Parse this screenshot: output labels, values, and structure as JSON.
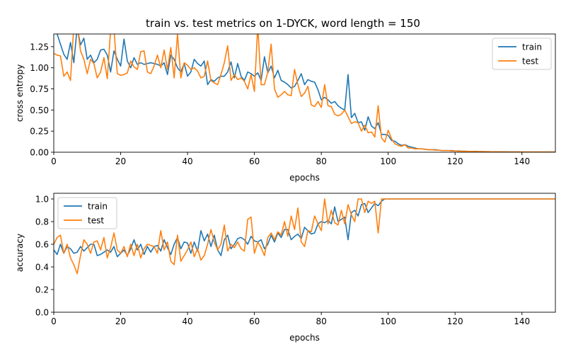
{
  "title": "train vs. test metrics on 1-DYCK, word length = 150",
  "colors": {
    "train": "#1f77b4",
    "test": "#ff7f0e"
  },
  "chart_data": [
    {
      "type": "line",
      "xlabel": "epochs",
      "ylabel": "cross entropy",
      "xlim": [
        0,
        150
      ],
      "ylim": [
        0,
        1.4
      ],
      "xticks": [
        "0",
        "20",
        "40",
        "60",
        "80",
        "100",
        "120",
        "140"
      ],
      "yticks": [
        "0.00",
        "0.25",
        "0.50",
        "0.75",
        "1.00",
        "1.25"
      ],
      "legend_position": "top-right",
      "series": [
        {
          "name": "train",
          "key": "train",
          "values": [
            1.55,
            1.4,
            1.28,
            1.16,
            1.1,
            1.3,
            1.06,
            1.48,
            1.27,
            1.35,
            1.1,
            1.15,
            1.06,
            1.1,
            1.21,
            1.22,
            1.15,
            0.95,
            1.2,
            1.1,
            1.02,
            1.34,
            1.08,
            1.0,
            1.12,
            1.04,
            1.06,
            1.04,
            1.05,
            1.06,
            1.05,
            1.04,
            1.02,
            1.06,
            0.92,
            1.15,
            1.1,
            1.0,
            0.95,
            1.05,
            0.9,
            0.95,
            1.1,
            1.05,
            1.02,
            1.08,
            0.8,
            0.86,
            0.84,
            0.88,
            0.9,
            0.9,
            0.95,
            1.07,
            0.88,
            1.05,
            0.9,
            0.85,
            0.95,
            0.93,
            0.9,
            0.94,
            0.85,
            1.13,
            0.94,
            1.02,
            0.88,
            0.97,
            0.85,
            0.83,
            0.8,
            0.76,
            0.78,
            0.85,
            0.93,
            0.8,
            0.86,
            0.84,
            0.83,
            0.74,
            0.62,
            0.65,
            0.62,
            0.58,
            0.6,
            0.55,
            0.52,
            0.5,
            0.92,
            0.41,
            0.46,
            0.35,
            0.36,
            0.26,
            0.42,
            0.31,
            0.28,
            0.35,
            0.21,
            0.21,
            0.2,
            0.14,
            0.13,
            0.1,
            0.08,
            0.09,
            0.07,
            0.06,
            0.05,
            0.04,
            0.04,
            0.035,
            0.03,
            0.03,
            0.03,
            0.025,
            0.02,
            0.02,
            0.02,
            0.02,
            0.015,
            0.015,
            0.012,
            0.012,
            0.01,
            0.01,
            0.01,
            0.008,
            0.008,
            0.007,
            0.007,
            0.006,
            0.006,
            0.005,
            0.005,
            0.005,
            0.004,
            0.004,
            0.004,
            0.004,
            0.003,
            0.003,
            0.003,
            0.003,
            0.003,
            0.003,
            0.003,
            0.003,
            0.003,
            0.003,
            0.003
          ]
        },
        {
          "name": "test",
          "key": "test",
          "values": [
            1.17,
            1.15,
            1.14,
            0.9,
            0.95,
            0.85,
            1.5,
            1.5,
            1.2,
            1.1,
            0.93,
            1.1,
            1.05,
            0.88,
            0.95,
            1.12,
            0.87,
            1.45,
            1.45,
            0.93,
            0.91,
            0.92,
            0.94,
            1.08,
            1.01,
            0.98,
            1.19,
            1.2,
            0.95,
            0.93,
            1.02,
            1.15,
            1.0,
            1.21,
            0.98,
            1.24,
            0.88,
            1.4,
            0.88,
            1.06,
            1.03,
            0.98,
            1.0,
            0.96,
            0.88,
            0.9,
            1.08,
            0.85,
            0.82,
            0.8,
            0.92,
            1.06,
            1.26,
            0.85,
            0.92,
            0.86,
            0.88,
            0.84,
            0.75,
            0.92,
            0.72,
            1.5,
            0.8,
            0.8,
            0.95,
            1.28,
            0.75,
            0.65,
            0.68,
            0.72,
            0.68,
            0.67,
            0.98,
            0.8,
            0.66,
            0.7,
            0.78,
            0.56,
            0.54,
            0.6,
            0.53,
            0.8,
            0.55,
            0.54,
            0.45,
            0.43,
            0.45,
            0.5,
            0.42,
            0.34,
            0.36,
            0.35,
            0.25,
            0.32,
            0.23,
            0.24,
            0.18,
            0.55,
            0.17,
            0.12,
            0.26,
            0.16,
            0.1,
            0.08,
            0.07,
            0.09,
            0.05,
            0.05,
            0.04,
            0.04,
            0.04,
            0.035,
            0.03,
            0.03,
            0.025,
            0.025,
            0.02,
            0.02,
            0.02,
            0.015,
            0.015,
            0.012,
            0.012,
            0.01,
            0.01,
            0.01,
            0.008,
            0.008,
            0.007,
            0.007,
            0.006,
            0.006,
            0.005,
            0.005,
            0.005,
            0.004,
            0.004,
            0.004,
            0.004,
            0.003,
            0.003,
            0.003,
            0.003,
            0.003,
            0.003,
            0.003,
            0.003,
            0.003,
            0.003,
            0.003,
            0.003
          ]
        }
      ]
    },
    {
      "type": "line",
      "xlabel": "epochs",
      "ylabel": "accuracy",
      "xlim": [
        0,
        150
      ],
      "ylim": [
        0,
        1.05
      ],
      "xticks": [
        "0",
        "20",
        "40",
        "60",
        "80",
        "100",
        "120",
        "140"
      ],
      "yticks": [
        "0.0",
        "0.2",
        "0.4",
        "0.6",
        "0.8",
        "1.0"
      ],
      "legend_position": "top-left",
      "series": [
        {
          "name": "train",
          "key": "train",
          "values": [
            0.55,
            0.51,
            0.6,
            0.52,
            0.58,
            0.56,
            0.52,
            0.53,
            0.58,
            0.54,
            0.57,
            0.6,
            0.6,
            0.5,
            0.51,
            0.53,
            0.55,
            0.53,
            0.58,
            0.49,
            0.52,
            0.55,
            0.5,
            0.56,
            0.64,
            0.55,
            0.6,
            0.51,
            0.58,
            0.53,
            0.58,
            0.59,
            0.54,
            0.64,
            0.57,
            0.51,
            0.6,
            0.66,
            0.56,
            0.62,
            0.61,
            0.52,
            0.62,
            0.54,
            0.72,
            0.63,
            0.69,
            0.58,
            0.68,
            0.55,
            0.5,
            0.64,
            0.68,
            0.56,
            0.6,
            0.65,
            0.66,
            0.64,
            0.6,
            0.67,
            0.63,
            0.62,
            0.64,
            0.56,
            0.6,
            0.68,
            0.62,
            0.7,
            0.66,
            0.73,
            0.73,
            0.64,
            0.67,
            0.69,
            0.65,
            0.75,
            0.72,
            0.69,
            0.7,
            0.78,
            0.8,
            0.79,
            0.81,
            0.78,
            0.93,
            0.8,
            0.82,
            0.84,
            0.64,
            0.88,
            0.9,
            0.85,
            0.95,
            0.96,
            0.88,
            0.92,
            0.96,
            0.94,
            0.98,
            1.0,
            1.0,
            1.0,
            1.0,
            1.0,
            1.0,
            1.0,
            1.0,
            1.0,
            1.0,
            1.0,
            1.0,
            1.0,
            1.0,
            1.0,
            1.0,
            1.0,
            1.0,
            1.0,
            1.0,
            1.0,
            1.0,
            1.0,
            1.0,
            1.0,
            1.0,
            1.0,
            1.0,
            1.0,
            1.0,
            1.0,
            1.0,
            1.0,
            1.0,
            1.0,
            1.0,
            1.0,
            1.0,
            1.0,
            1.0,
            1.0,
            1.0,
            1.0,
            1.0,
            1.0,
            1.0,
            1.0,
            1.0,
            1.0,
            1.0,
            1.0,
            1.0
          ]
        },
        {
          "name": "test",
          "key": "test",
          "values": [
            0.6,
            0.66,
            0.68,
            0.52,
            0.6,
            0.48,
            0.42,
            0.34,
            0.5,
            0.64,
            0.6,
            0.52,
            0.62,
            0.63,
            0.55,
            0.66,
            0.48,
            0.57,
            0.7,
            0.55,
            0.52,
            0.58,
            0.49,
            0.6,
            0.5,
            0.6,
            0.48,
            0.56,
            0.6,
            0.59,
            0.58,
            0.52,
            0.72,
            0.55,
            0.62,
            0.45,
            0.42,
            0.68,
            0.45,
            0.5,
            0.55,
            0.62,
            0.49,
            0.56,
            0.46,
            0.5,
            0.6,
            0.73,
            0.62,
            0.55,
            0.6,
            0.77,
            0.54,
            0.6,
            0.57,
            0.62,
            0.56,
            0.54,
            0.82,
            0.84,
            0.52,
            0.62,
            0.57,
            0.5,
            0.66,
            0.7,
            0.64,
            0.71,
            0.68,
            0.8,
            0.67,
            0.85,
            0.73,
            0.92,
            0.62,
            0.58,
            0.72,
            0.71,
            0.85,
            0.78,
            0.72,
            1.0,
            0.78,
            0.9,
            0.79,
            0.77,
            0.9,
            0.78,
            0.95,
            0.86,
            0.8,
            1.0,
            1.0,
            0.88,
            0.98,
            0.96,
            0.98,
            0.7,
            1.0,
            1.0,
            1.0,
            1.0,
            1.0,
            1.0,
            1.0,
            1.0,
            1.0,
            1.0,
            1.0,
            1.0,
            1.0,
            1.0,
            1.0,
            1.0,
            1.0,
            1.0,
            1.0,
            1.0,
            1.0,
            1.0,
            1.0,
            1.0,
            1.0,
            1.0,
            1.0,
            1.0,
            1.0,
            1.0,
            1.0,
            1.0,
            1.0,
            1.0,
            1.0,
            1.0,
            1.0,
            1.0,
            1.0,
            1.0,
            1.0,
            1.0,
            1.0,
            1.0,
            1.0,
            1.0,
            1.0,
            1.0,
            1.0,
            1.0,
            1.0,
            1.0,
            1.0
          ]
        }
      ]
    }
  ]
}
